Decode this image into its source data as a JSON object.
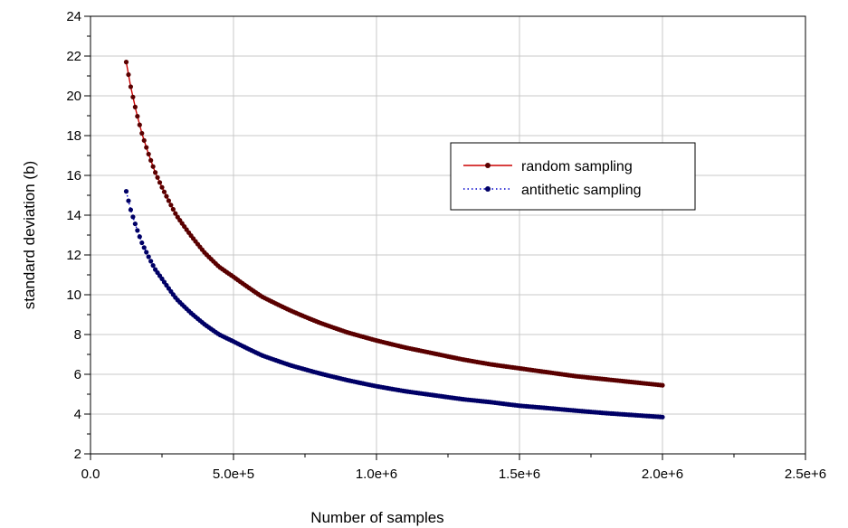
{
  "chart_data": {
    "type": "scatter",
    "title": "",
    "xlabel": "Number of samples",
    "ylabel": "standard deviation (b)",
    "xlim": [
      0,
      2500000
    ],
    "ylim": [
      2,
      24
    ],
    "grid": true,
    "legend_placement": "right",
    "x_ticks": [
      {
        "value": 0,
        "label": "0.0"
      },
      {
        "value": 500000,
        "label": "5.0e+5"
      },
      {
        "value": 1000000,
        "label": "1.0e+6"
      },
      {
        "value": 1500000,
        "label": "1.5e+6"
      },
      {
        "value": 2000000,
        "label": "2.0e+6"
      },
      {
        "value": 2500000,
        "label": "2.5e+6"
      }
    ],
    "y_ticks": [
      2,
      4,
      6,
      8,
      10,
      12,
      14,
      16,
      18,
      20,
      22,
      24
    ],
    "series": [
      {
        "name": "random sampling",
        "color": "#cc0000",
        "marker_color": "#5a0000",
        "line_style": "solid",
        "x": [
          125000,
          140000,
          160000,
          180000,
          200000,
          225000,
          250000,
          300000,
          350000,
          400000,
          450000,
          500000,
          600000,
          700000,
          800000,
          900000,
          1000000,
          1100000,
          1200000,
          1300000,
          1400000,
          1500000,
          1600000,
          1700000,
          1800000,
          1900000,
          2000000
        ],
        "y": [
          21.7,
          20.5,
          19.2,
          18.1,
          17.2,
          16.2,
          15.4,
          14.0,
          13.0,
          12.1,
          11.4,
          10.9,
          9.9,
          9.2,
          8.6,
          8.1,
          7.7,
          7.35,
          7.05,
          6.75,
          6.5,
          6.3,
          6.1,
          5.9,
          5.75,
          5.6,
          5.45
        ]
      },
      {
        "name": "antithetic sampling",
        "color": "#0000cc",
        "marker_color": "#000066",
        "line_style": "dotted",
        "x": [
          125000,
          140000,
          160000,
          180000,
          200000,
          225000,
          250000,
          300000,
          350000,
          400000,
          450000,
          500000,
          600000,
          700000,
          800000,
          900000,
          1000000,
          1100000,
          1200000,
          1300000,
          1400000,
          1500000,
          1600000,
          1700000,
          1800000,
          1900000,
          2000000
        ],
        "y": [
          15.2,
          14.3,
          13.4,
          12.6,
          12.0,
          11.3,
          10.8,
          9.8,
          9.1,
          8.5,
          8.0,
          7.65,
          6.95,
          6.45,
          6.05,
          5.7,
          5.4,
          5.15,
          4.95,
          4.75,
          4.6,
          4.42,
          4.3,
          4.17,
          4.05,
          3.95,
          3.85
        ]
      }
    ]
  }
}
